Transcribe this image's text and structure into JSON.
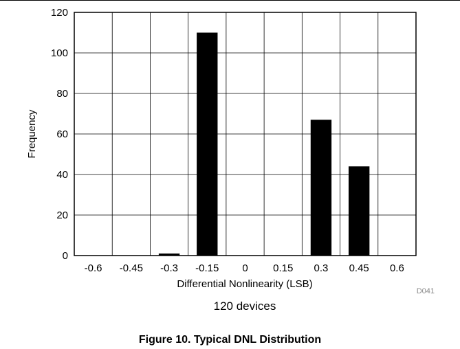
{
  "chart_data": {
    "type": "bar",
    "categories": [
      "-0.6",
      "-0.45",
      "-0.3",
      "-0.15",
      "0",
      "0.15",
      "0.3",
      "0.45",
      "0.6"
    ],
    "values": [
      0,
      0,
      1,
      110,
      0,
      0,
      67,
      44,
      0
    ],
    "xlabel": "Differential Nonlinearity (LSB)",
    "ylabel": "Frequency",
    "ylim": [
      0,
      120
    ],
    "yticks": [
      "0",
      "20",
      "40",
      "60",
      "80",
      "100",
      "120"
    ],
    "grid": true,
    "annotation": "120 devices",
    "code": "D041"
  },
  "figure_caption": "Figure 10. Typical DNL Distribution",
  "colors": {
    "bars": "#000000",
    "grid": "#000000",
    "background": "#ffffff"
  }
}
